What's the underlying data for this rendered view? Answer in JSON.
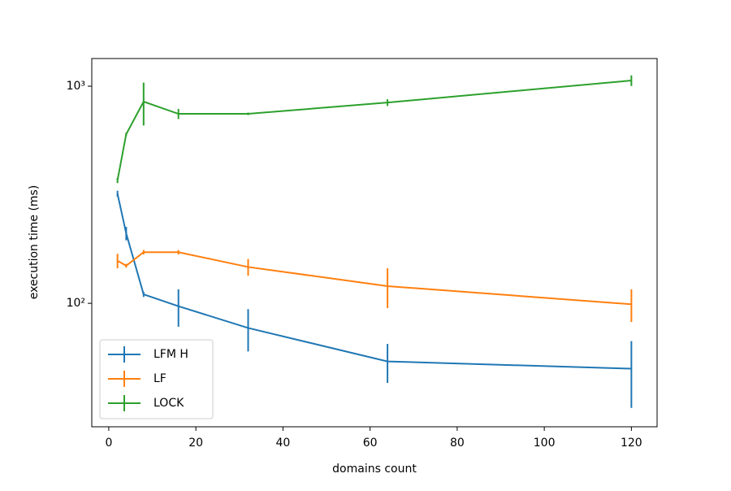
{
  "chart_data": {
    "type": "errorbar-line",
    "x_label": "domains count",
    "y_label": "execution time (ms)",
    "x": [
      2,
      4,
      8,
      16,
      32,
      64,
      120
    ],
    "series": [
      {
        "name": "LFM H",
        "color": "#1f77b4",
        "values": [
          320,
          210,
          110,
          97,
          77,
          54,
          50
        ],
        "errors": [
          10,
          15,
          3,
          19,
          17,
          11,
          17
        ]
      },
      {
        "name": "LF",
        "color": "#ff7f0e",
        "values": [
          157,
          149,
          172,
          172,
          147,
          120,
          99
        ],
        "errors": [
          12,
          3,
          4,
          4,
          13,
          25,
          17
        ]
      },
      {
        "name": "LOCK",
        "color": "#2ca02c",
        "values": [
          368,
          601,
          849,
          746,
          746,
          841,
          1062
        ],
        "errors": [
          10,
          10,
          190,
          40,
          10,
          30,
          60
        ]
      }
    ],
    "xlim": [
      -3.9,
      125.9
    ],
    "ylim": [
      27,
      1341
    ],
    "log_y": true,
    "xticks": [
      0,
      20,
      40,
      60,
      80,
      100,
      120
    ],
    "yticks": [
      {
        "value": 100,
        "label": "10²"
      },
      {
        "value": 1000,
        "label": "10³"
      }
    ],
    "legend": "lower left"
  }
}
